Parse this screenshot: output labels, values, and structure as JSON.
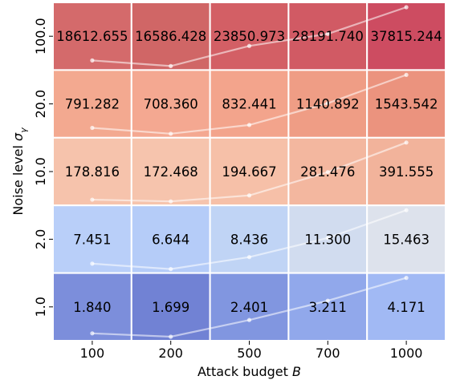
{
  "chart_data": {
    "type": "heatmap",
    "xlabel": "Attack budget B",
    "xlabel_parts": {
      "text": "Attack budget ",
      "var": "B"
    },
    "ylabel": "Noise level σ_γ",
    "ylabel_parts": {
      "text": "Noise level ",
      "var": "σ",
      "sub": "γ"
    },
    "x_categories": [
      "100",
      "200",
      "500",
      "700",
      "1000"
    ],
    "y_categories": [
      "100.0",
      "20.0",
      "10.0",
      "2.0",
      "1.0"
    ],
    "values": [
      [
        18612.655,
        16586.428,
        23850.973,
        28191.74,
        37815.244
      ],
      [
        791.282,
        708.36,
        832.441,
        1140.892,
        1543.542
      ],
      [
        178.816,
        172.468,
        194.667,
        281.476,
        391.555
      ],
      [
        7.451,
        6.644,
        8.436,
        11.3,
        15.463
      ],
      [
        1.84,
        1.699,
        2.401,
        3.211,
        4.171
      ]
    ],
    "value_labels": [
      [
        "18612.655",
        "16586.428",
        "23850.973",
        "28191.740",
        "37815.244"
      ],
      [
        "791.282",
        "708.360",
        "832.441",
        "1140.892",
        "1543.542"
      ],
      [
        "178.816",
        "172.468",
        "194.667",
        "281.476",
        "391.555"
      ],
      [
        "7.451",
        "6.644",
        "8.436",
        "11.300",
        "15.463"
      ],
      [
        "1.840",
        "1.699",
        "2.401",
        "3.211",
        "4.171"
      ]
    ],
    "row_trend_lines": true,
    "colormap": "coolwarm",
    "colors": {
      "grid": "#ffffff",
      "cells": [
        [
          "#d46a6b",
          "#d06666",
          "#d35f65",
          "#d15a64",
          "#cd4c61"
        ],
        [
          "#f3a990",
          "#f4a891",
          "#f3a48c",
          "#ef9d85",
          "#eb937e"
        ],
        [
          "#f6c3ac",
          "#f6c4ad",
          "#f6c0a8",
          "#f3b79f",
          "#f2b39b"
        ],
        [
          "#b9cff9",
          "#b5ccf8",
          "#c0d4f5",
          "#d1dcef",
          "#dde2ec"
        ],
        [
          "#7c8edb",
          "#7182d4",
          "#8196e0",
          "#91a8eb",
          "#a1b9f4"
        ]
      ]
    }
  }
}
